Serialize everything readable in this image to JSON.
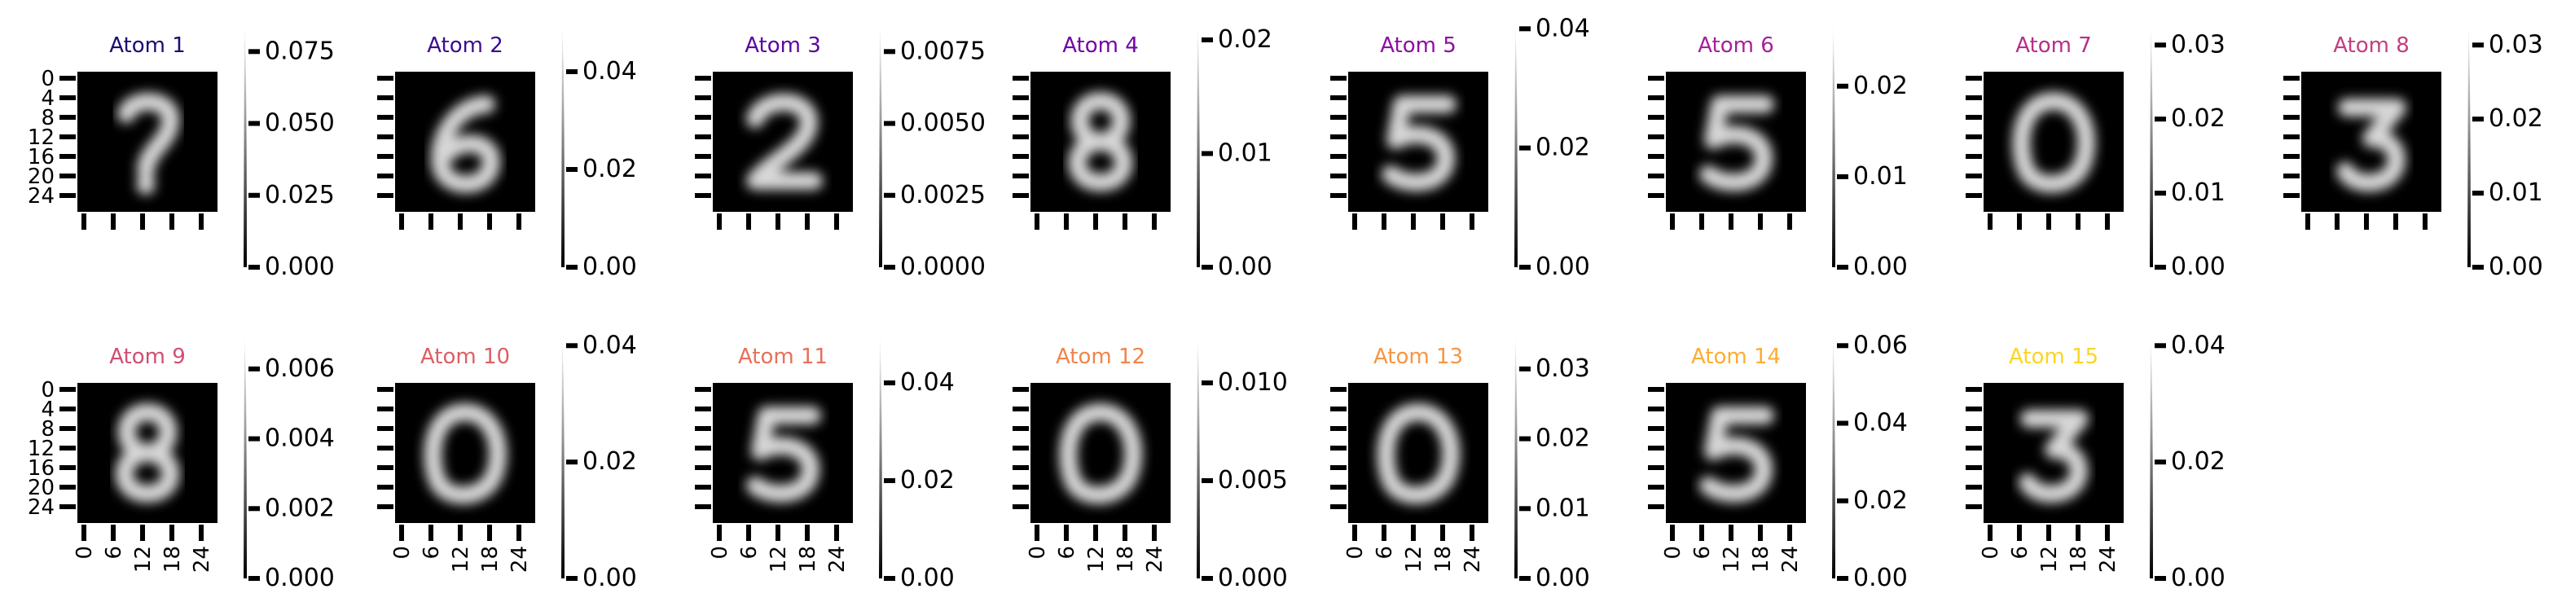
{
  "chart_data": {
    "type": "heatmap",
    "figure_description": "",
    "colormap": "gray",
    "image_axis": {
      "ticks": [
        "0",
        "4",
        "8",
        "12",
        "16",
        "20",
        "24"
      ],
      "xticks": [
        "0",
        "6",
        "12",
        "18",
        "24"
      ]
    },
    "atoms": [
      {
        "title": "Atom 1",
        "digit": "?",
        "color": "#1a0e6e",
        "cbar_ticks": [
          "0.000",
          "0.025",
          "0.050",
          "0.075"
        ],
        "cbar_max": 0.085
      },
      {
        "title": "Atom 2",
        "digit": "6",
        "color": "#3b0e8c",
        "cbar_ticks": [
          "0.00",
          "0.02",
          "0.04"
        ],
        "cbar_max": 0.05
      },
      {
        "title": "Atom 3",
        "digit": "2",
        "color": "#5a05a0",
        "cbar_ticks": [
          "0.0000",
          "0.0025",
          "0.0050",
          "0.0075"
        ],
        "cbar_max": 0.0085
      },
      {
        "title": "Atom 4",
        "digit": "8",
        "color": "#7303a7",
        "cbar_ticks": [
          "0.00",
          "0.01",
          "0.02"
        ],
        "cbar_max": 0.0215
      },
      {
        "title": "Atom 5",
        "digit": "5",
        "color": "#8f0da4",
        "cbar_ticks": [
          "0.00",
          "0.02",
          "0.04"
        ],
        "cbar_max": 0.041
      },
      {
        "title": "Atom 6",
        "digit": "5",
        "color": "#a62098",
        "cbar_ticks": [
          "0.00",
          "0.01",
          "0.02"
        ],
        "cbar_max": 0.027
      },
      {
        "title": "Atom 7",
        "digit": "0",
        "color": "#b52f8c",
        "cbar_ticks": [
          "0.00",
          "0.01",
          "0.02",
          "0.03"
        ],
        "cbar_max": 0.033
      },
      {
        "title": "Atom 8",
        "digit": "3",
        "color": "#c43e7f",
        "cbar_ticks": [
          "0.00",
          "0.01",
          "0.02",
          "0.03"
        ],
        "cbar_max": 0.033
      },
      {
        "title": "Atom 9",
        "digit": "8",
        "color": "#d14e72",
        "cbar_ticks": [
          "0.000",
          "0.002",
          "0.004",
          "0.006"
        ],
        "cbar_max": 0.007
      },
      {
        "title": "Atom 10",
        "digit": "0",
        "color": "#dd5f65",
        "cbar_ticks": [
          "0.00",
          "0.02",
          "0.04"
        ],
        "cbar_max": 0.042
      },
      {
        "title": "Atom 11",
        "digit": "5",
        "color": "#e8705a",
        "cbar_ticks": [
          "0.00",
          "0.02",
          "0.04"
        ],
        "cbar_max": 0.05
      },
      {
        "title": "Atom 12",
        "digit": "0",
        "color": "#f1844b",
        "cbar_ticks": [
          "0.000",
          "0.005",
          "0.010"
        ],
        "cbar_max": 0.0125
      },
      {
        "title": "Atom 13",
        "digit": "0",
        "color": "#f89540",
        "cbar_ticks": [
          "0.00",
          "0.01",
          "0.02",
          "0.03"
        ],
        "cbar_max": 0.035
      },
      {
        "title": "Atom 14",
        "digit": "5",
        "color": "#fdac33",
        "cbar_ticks": [
          "0.00",
          "0.02",
          "0.04",
          "0.06"
        ],
        "cbar_max": 0.063
      },
      {
        "title": "Atom 15",
        "digit": "3",
        "color": "#fbd524",
        "cbar_ticks": [
          "0.00",
          "0.02",
          "0.04"
        ],
        "cbar_max": 0.042
      }
    ]
  }
}
